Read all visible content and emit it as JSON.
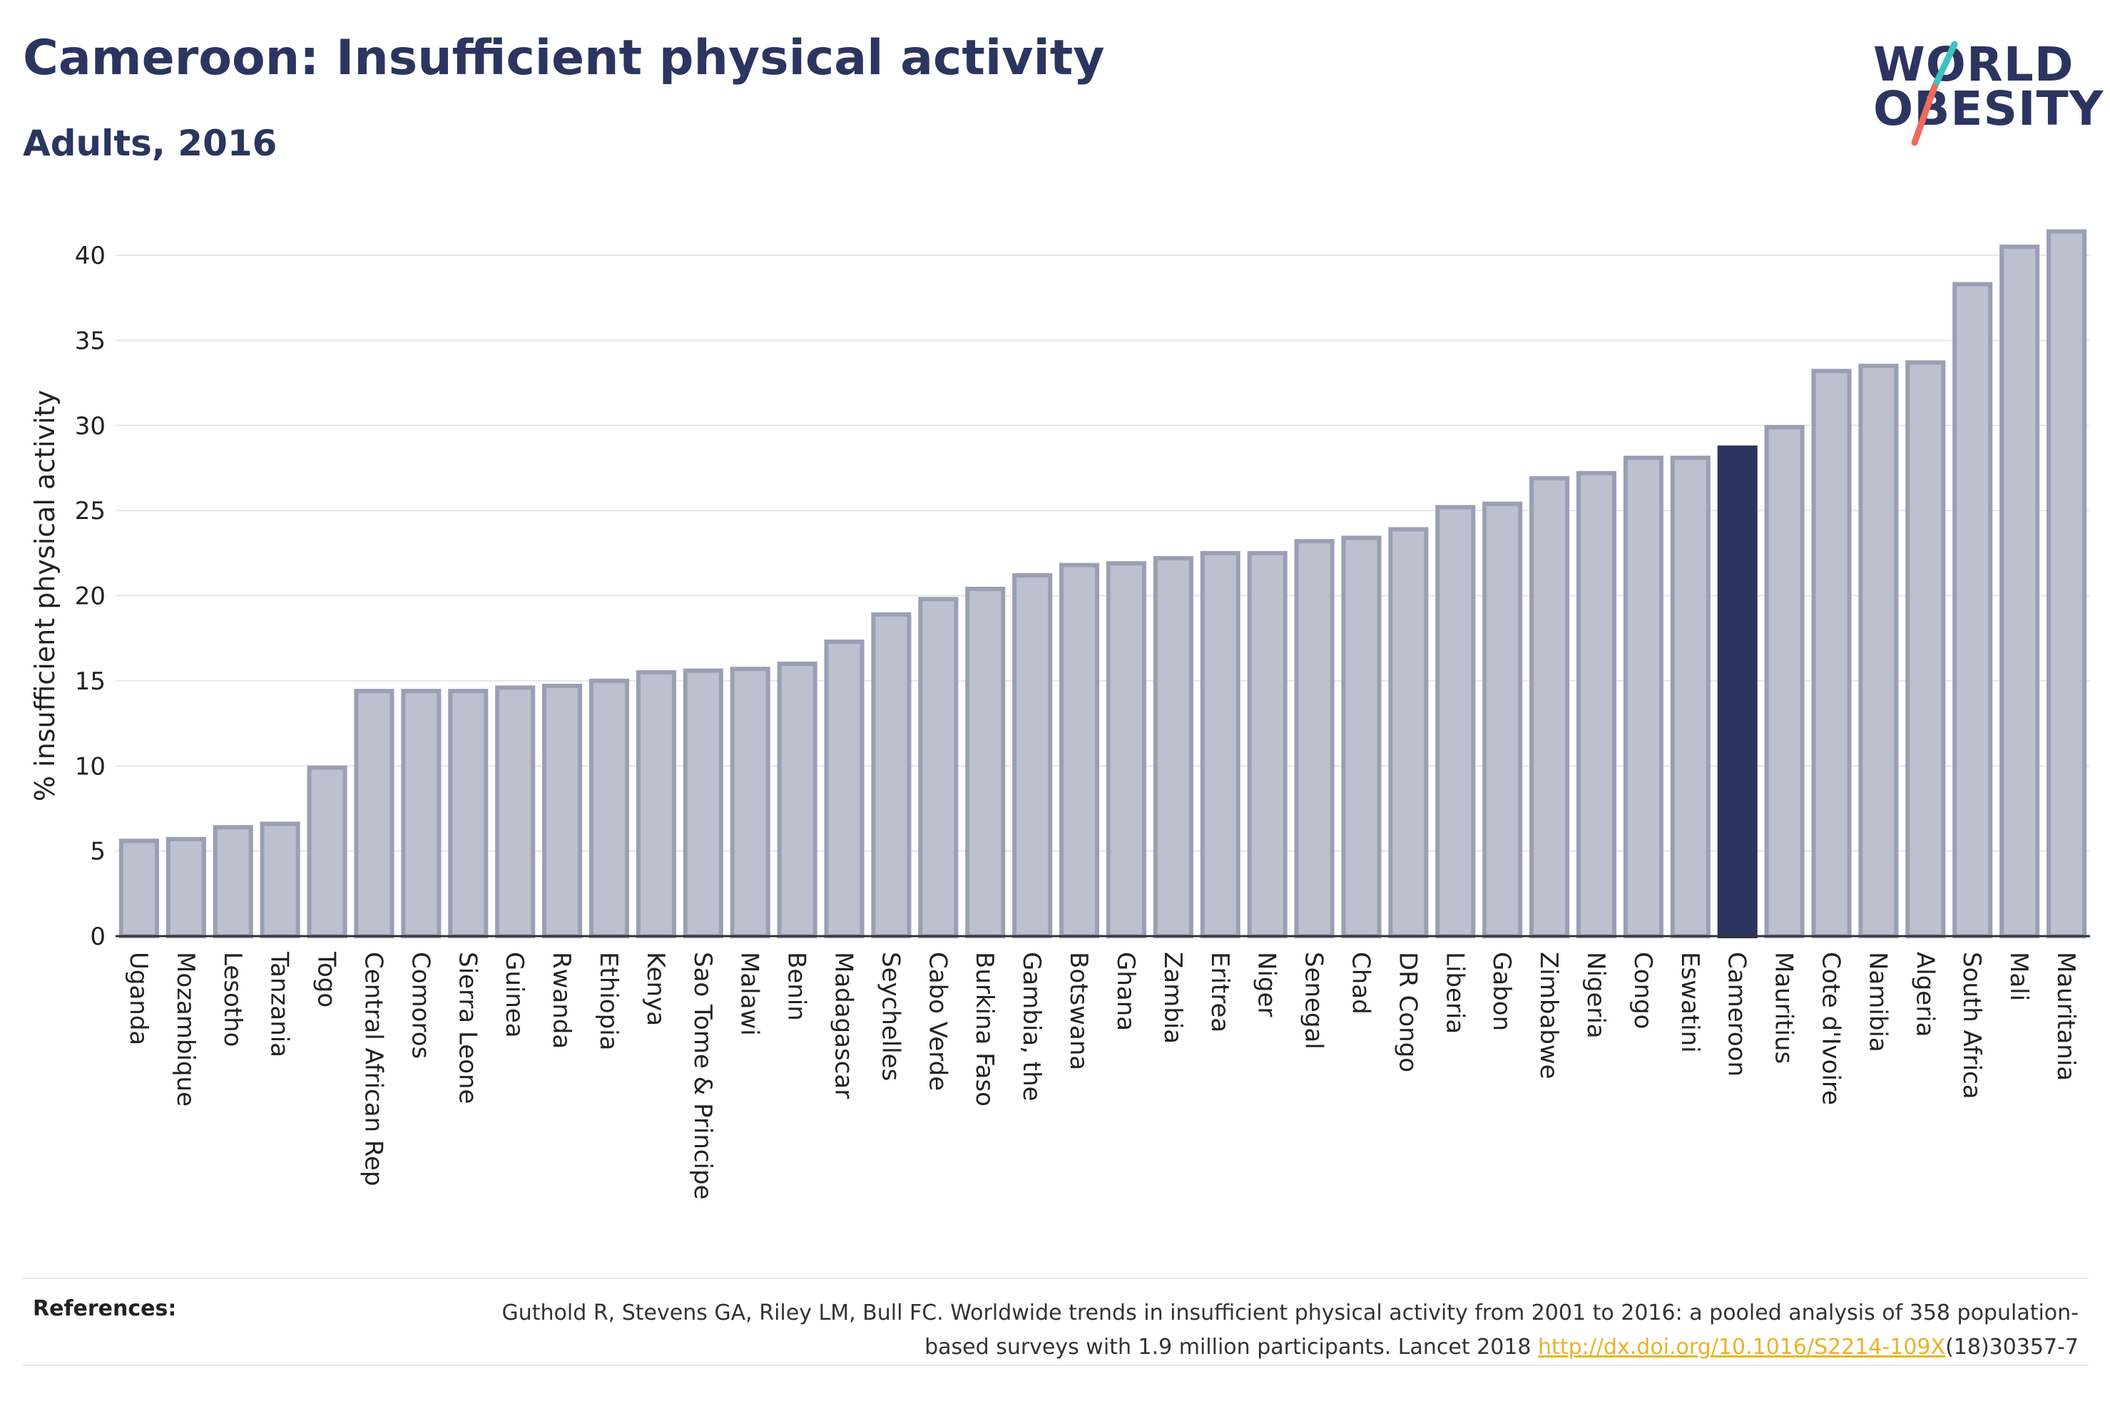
{
  "header": {
    "title": "Cameroon: Insufficient physical activity",
    "subtitle": "Adults, 2016"
  },
  "logo": {
    "line1": "WORLD",
    "line2": "OBESITY",
    "colors": {
      "text": "#2b3560",
      "slash_teal": "#3fc1c0",
      "slash_coral": "#ef6a5a"
    }
  },
  "chart_data": {
    "type": "bar",
    "ylabel": "% insufficient physical activity",
    "xlabel": "",
    "ylim": [
      0,
      42
    ],
    "yticks": [
      0,
      5,
      10,
      15,
      20,
      25,
      30,
      35,
      40
    ],
    "grid": true,
    "highlight": "Cameroon",
    "colors": {
      "bar": "#bcc0cf",
      "bar_edge": "#9a9fb5",
      "highlight": "#2b3560",
      "grid": "#e6e6ea",
      "axis": "#333333"
    },
    "categories": [
      "Uganda",
      "Mozambique",
      "Lesotho",
      "Tanzania",
      "Togo",
      "Central African Rep",
      "Comoros",
      "Sierra Leone",
      "Guinea",
      "Rwanda",
      "Ethiopia",
      "Kenya",
      "Sao Tome & Principe",
      "Malawi",
      "Benin",
      "Madagascar",
      "Seychelles",
      "Cabo Verde",
      "Burkina Faso",
      "Gambia, the",
      "Botswana",
      "Ghana",
      "Zambia",
      "Eritrea",
      "Niger",
      "Senegal",
      "Chad",
      "DR Congo",
      "Liberia",
      "Gabon",
      "Zimbabwe",
      "Nigeria",
      "Congo",
      "Eswatini",
      "Cameroon",
      "Mauritius",
      "Cote d'Ivoire",
      "Namibia",
      "Algeria",
      "South Africa",
      "Mali",
      "Mauritania"
    ],
    "values": [
      5.6,
      5.7,
      6.4,
      6.6,
      9.9,
      14.4,
      14.4,
      14.4,
      14.6,
      14.7,
      15.0,
      15.5,
      15.6,
      15.7,
      16.0,
      17.3,
      18.9,
      19.8,
      20.4,
      21.2,
      21.8,
      21.9,
      22.2,
      22.5,
      22.5,
      23.2,
      23.4,
      23.9,
      25.2,
      25.4,
      26.9,
      27.2,
      28.1,
      28.1,
      28.7,
      29.9,
      33.2,
      33.5,
      33.7,
      38.3,
      40.5,
      41.4
    ]
  },
  "references": {
    "label": "References:",
    "text_before": "Guthold R, Stevens GA, Riley LM, Bull FC. Worldwide trends in insufficient physical activity from 2001 to 2016: a pooled analysis of 358 population-based surveys with 1.9 million participants. Lancet 2018 ",
    "link": "http://dx.doi.org/10.1016/S2214-109X",
    "text_after": "(18)30357-7"
  }
}
